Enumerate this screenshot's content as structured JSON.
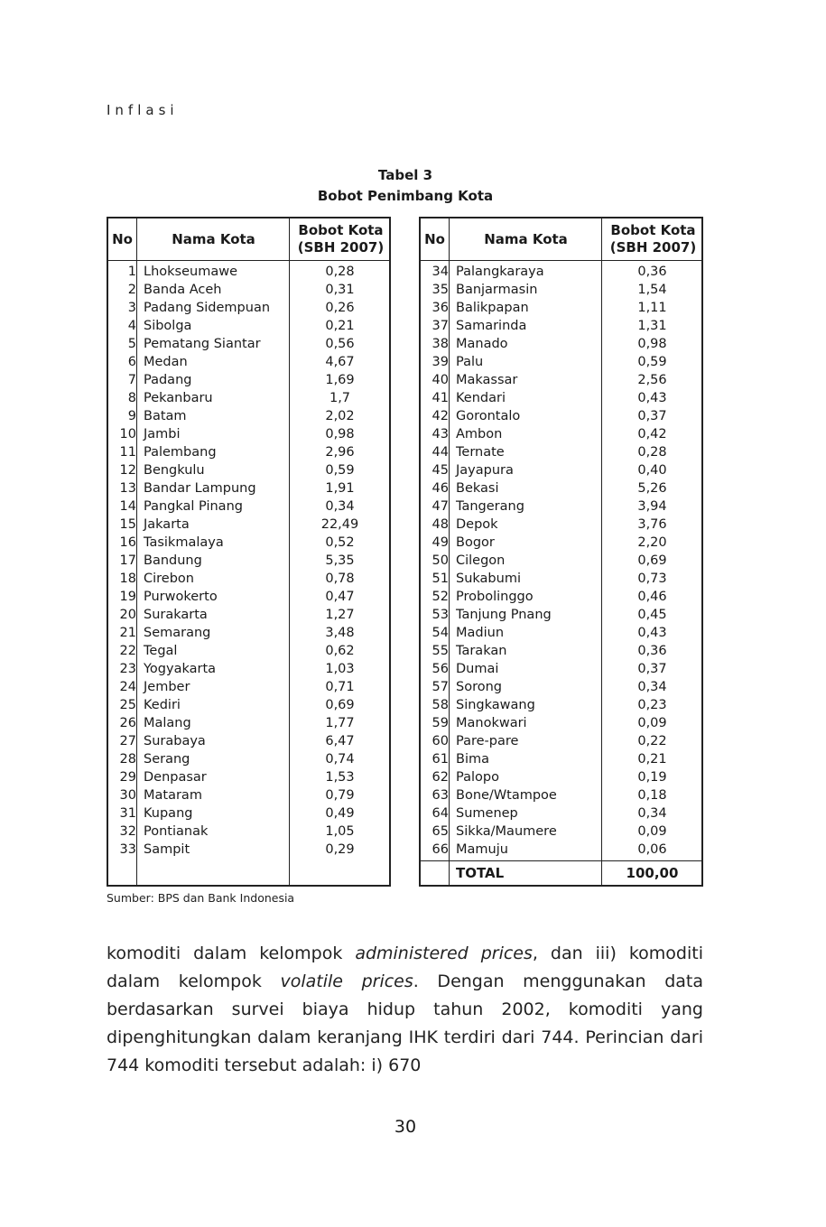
{
  "header": {
    "running_title": "Inflasi"
  },
  "table": {
    "caption_line1": "Tabel 3",
    "caption_line2": "Bobot Penimbang Kota",
    "columns": {
      "no": "No",
      "name": "Nama Kota",
      "value_line1": "Bobot Kota",
      "value_line2": "(SBH 2007)"
    },
    "left_rows": [
      {
        "no": "1",
        "name": "Lhokseumawe",
        "value": "0,28"
      },
      {
        "no": "2",
        "name": "Banda Aceh",
        "value": "0,31"
      },
      {
        "no": "3",
        "name": "Padang Sidempuan",
        "value": "0,26"
      },
      {
        "no": "4",
        "name": "Sibolga",
        "value": "0,21"
      },
      {
        "no": "5",
        "name": "Pematang Siantar",
        "value": "0,56"
      },
      {
        "no": "6",
        "name": "Medan",
        "value": "4,67"
      },
      {
        "no": "7",
        "name": "Padang",
        "value": "1,69"
      },
      {
        "no": "8",
        "name": "Pekanbaru",
        "value": "1,7"
      },
      {
        "no": "9",
        "name": "Batam",
        "value": "2,02"
      },
      {
        "no": "10",
        "name": "Jambi",
        "value": "0,98"
      },
      {
        "no": "11",
        "name": "Palembang",
        "value": "2,96"
      },
      {
        "no": "12",
        "name": "Bengkulu",
        "value": "0,59"
      },
      {
        "no": "13",
        "name": "Bandar Lampung",
        "value": "1,91"
      },
      {
        "no": "14",
        "name": "Pangkal Pinang",
        "value": "0,34"
      },
      {
        "no": "15",
        "name": "Jakarta",
        "value": "22,49"
      },
      {
        "no": "16",
        "name": "Tasikmalaya",
        "value": "0,52"
      },
      {
        "no": "17",
        "name": "Bandung",
        "value": "5,35"
      },
      {
        "no": "18",
        "name": "Cirebon",
        "value": "0,78"
      },
      {
        "no": "19",
        "name": "Purwokerto",
        "value": "0,47"
      },
      {
        "no": "20",
        "name": "Surakarta",
        "value": "1,27"
      },
      {
        "no": "21",
        "name": "Semarang",
        "value": "3,48"
      },
      {
        "no": "22",
        "name": "Tegal",
        "value": "0,62"
      },
      {
        "no": "23",
        "name": "Yogyakarta",
        "value": "1,03"
      },
      {
        "no": "24",
        "name": "Jember",
        "value": "0,71"
      },
      {
        "no": "25",
        "name": "Kediri",
        "value": "0,69"
      },
      {
        "no": "26",
        "name": "Malang",
        "value": "1,77"
      },
      {
        "no": "27",
        "name": "Surabaya",
        "value": "6,47"
      },
      {
        "no": "28",
        "name": "Serang",
        "value": "0,74"
      },
      {
        "no": "29",
        "name": "Denpasar",
        "value": "1,53"
      },
      {
        "no": "30",
        "name": "Mataram",
        "value": "0,79"
      },
      {
        "no": "31",
        "name": "Kupang",
        "value": "0,49"
      },
      {
        "no": "32",
        "name": "Pontianak",
        "value": "1,05"
      },
      {
        "no": "33",
        "name": "Sampit",
        "value": "0,29"
      }
    ],
    "right_rows": [
      {
        "no": "34",
        "name": "Palangkaraya",
        "value": "0,36"
      },
      {
        "no": "35",
        "name": "Banjarmasin",
        "value": "1,54"
      },
      {
        "no": "36",
        "name": "Balikpapan",
        "value": "1,11"
      },
      {
        "no": "37",
        "name": "Samarinda",
        "value": "1,31"
      },
      {
        "no": "38",
        "name": "Manado",
        "value": "0,98"
      },
      {
        "no": "39",
        "name": "Palu",
        "value": "0,59"
      },
      {
        "no": "40",
        "name": "Makassar",
        "value": "2,56"
      },
      {
        "no": "41",
        "name": "Kendari",
        "value": "0,43"
      },
      {
        "no": "42",
        "name": "Gorontalo",
        "value": "0,37"
      },
      {
        "no": "43",
        "name": "Ambon",
        "value": "0,42"
      },
      {
        "no": "44",
        "name": "Ternate",
        "value": "0,28"
      },
      {
        "no": "45",
        "name": "Jayapura",
        "value": "0,40"
      },
      {
        "no": "46",
        "name": "Bekasi",
        "value": "5,26"
      },
      {
        "no": "47",
        "name": "Tangerang",
        "value": "3,94"
      },
      {
        "no": "48",
        "name": "Depok",
        "value": "3,76"
      },
      {
        "no": "49",
        "name": "Bogor",
        "value": "2,20"
      },
      {
        "no": "50",
        "name": "Cilegon",
        "value": "0,69"
      },
      {
        "no": "51",
        "name": "Sukabumi",
        "value": "0,73"
      },
      {
        "no": "52",
        "name": "Probolinggo",
        "value": "0,46"
      },
      {
        "no": "53",
        "name": "Tanjung Pnang",
        "value": "0,45"
      },
      {
        "no": "54",
        "name": "Madiun",
        "value": "0,43"
      },
      {
        "no": "55",
        "name": "Tarakan",
        "value": "0,36"
      },
      {
        "no": "56",
        "name": "Dumai",
        "value": "0,37"
      },
      {
        "no": "57",
        "name": "Sorong",
        "value": "0,34"
      },
      {
        "no": "58",
        "name": "Singkawang",
        "value": "0,23"
      },
      {
        "no": "59",
        "name": "Manokwari",
        "value": "0,09"
      },
      {
        "no": "60",
        "name": "Pare-pare",
        "value": "0,22"
      },
      {
        "no": "61",
        "name": "Bima",
        "value": "0,21"
      },
      {
        "no": "62",
        "name": "Palopo",
        "value": "0,19"
      },
      {
        "no": "63",
        "name": "Bone/Wtampoe",
        "value": "0,18"
      },
      {
        "no": "64",
        "name": "Sumenep",
        "value": "0,34"
      },
      {
        "no": "65",
        "name": "Sikka/Maumere",
        "value": "0,09"
      },
      {
        "no": "66",
        "name": "Mamuju",
        "value": "0,06"
      }
    ],
    "total_label": "TOTAL",
    "total_value": "100,00"
  },
  "source": "Sumber: BPS dan Bank Indonesia",
  "body": {
    "p1_a": "komoditi dalam kelompok ",
    "p1_em1": "administered prices",
    "p1_b": ", dan iii) komoditi dalam kelompok ",
    "p1_em2": "volatile prices",
    "p1_c": ". Dengan menggunakan data berdasarkan survei biaya hidup tahun 2002, komoditi yang dipenghitungkan dalam keranjang IHK terdiri dari 744. Perincian dari 744 komoditi tersebut adalah: i) 670"
  },
  "page_number": "30"
}
